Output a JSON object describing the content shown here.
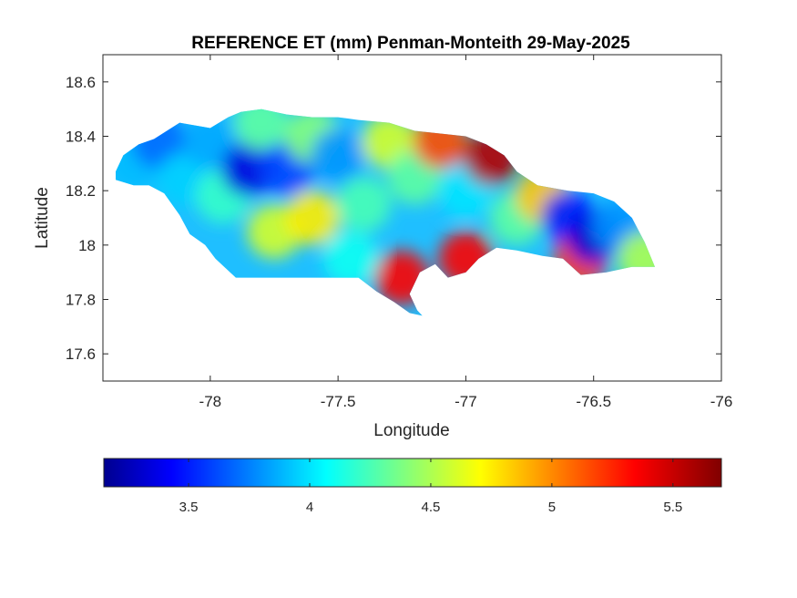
{
  "figure": {
    "title": "REFERENCE ET (mm) Penman-Monteith 29-May-2025"
  },
  "chart_data": {
    "type": "heatmap",
    "title": "REFERENCE ET (mm) Penman-Monteith 29-May-2025",
    "xlabel": "Longitude",
    "ylabel": "Latitude",
    "xlim": [
      -78.42,
      -76.0
    ],
    "ylim": [
      17.5,
      18.7
    ],
    "x_ticks": [
      -78,
      -77.5,
      -77,
      -76.5,
      -76
    ],
    "x_tick_labels": [
      "-78",
      "-77.5",
      "-77",
      "-76.5",
      "-76"
    ],
    "y_ticks": [
      17.6,
      17.8,
      18,
      18.2,
      18.4,
      18.6
    ],
    "y_tick_labels": [
      "17.6",
      "17.8",
      "18",
      "18.2",
      "18.4",
      "18.6"
    ],
    "colormap": "jet",
    "colorbar": {
      "location": "southoutside",
      "range": [
        3.15,
        5.7
      ],
      "ticks": [
        3.5,
        4,
        4.5,
        5,
        5.5
      ],
      "tick_labels": [
        "3.5",
        "4",
        "4.5",
        "5",
        "5.5"
      ]
    },
    "region_outline": [
      [
        -78.37,
        18.27
      ],
      [
        -78.34,
        18.33
      ],
      [
        -78.28,
        18.37
      ],
      [
        -78.22,
        18.39
      ],
      [
        -78.12,
        18.45
      ],
      [
        -78.0,
        18.43
      ],
      [
        -77.93,
        18.47
      ],
      [
        -77.88,
        18.49
      ],
      [
        -77.8,
        18.5
      ],
      [
        -77.7,
        18.48
      ],
      [
        -77.6,
        18.47
      ],
      [
        -77.5,
        18.47
      ],
      [
        -77.42,
        18.46
      ],
      [
        -77.3,
        18.45
      ],
      [
        -77.2,
        18.42
      ],
      [
        -77.1,
        18.41
      ],
      [
        -77.0,
        18.4
      ],
      [
        -76.92,
        18.37
      ],
      [
        -76.85,
        18.33
      ],
      [
        -76.8,
        18.27
      ],
      [
        -76.72,
        18.22
      ],
      [
        -76.6,
        18.2
      ],
      [
        -76.5,
        18.19
      ],
      [
        -76.42,
        18.16
      ],
      [
        -76.35,
        18.1
      ],
      [
        -76.3,
        18.01
      ],
      [
        -76.26,
        17.92
      ],
      [
        -76.35,
        17.92
      ],
      [
        -76.45,
        17.9
      ],
      [
        -76.55,
        17.89
      ],
      [
        -76.62,
        17.95
      ],
      [
        -76.7,
        17.96
      ],
      [
        -76.8,
        17.98
      ],
      [
        -76.88,
        17.99
      ],
      [
        -76.95,
        17.95
      ],
      [
        -77.0,
        17.9
      ],
      [
        -77.07,
        17.88
      ],
      [
        -77.12,
        17.93
      ],
      [
        -77.18,
        17.9
      ],
      [
        -77.22,
        17.82
      ],
      [
        -77.19,
        17.76
      ],
      [
        -77.17,
        17.74
      ],
      [
        -77.22,
        17.75
      ],
      [
        -77.28,
        17.79
      ],
      [
        -77.35,
        17.83
      ],
      [
        -77.42,
        17.88
      ],
      [
        -77.5,
        17.88
      ],
      [
        -77.6,
        17.88
      ],
      [
        -77.7,
        17.88
      ],
      [
        -77.8,
        17.88
      ],
      [
        -77.9,
        17.88
      ],
      [
        -77.98,
        17.95
      ],
      [
        -78.02,
        18.0
      ],
      [
        -78.08,
        18.04
      ],
      [
        -78.12,
        18.11
      ],
      [
        -78.18,
        18.19
      ],
      [
        -78.24,
        18.22
      ],
      [
        -78.3,
        18.22
      ],
      [
        -78.37,
        18.24
      ]
    ],
    "sample_points": [
      {
        "lon": -78.3,
        "lat": 18.3,
        "value": 3.9
      },
      {
        "lon": -78.2,
        "lat": 18.38,
        "value": 3.7
      },
      {
        "lon": -78.1,
        "lat": 18.24,
        "value": 3.95
      },
      {
        "lon": -78.0,
        "lat": 18.38,
        "value": 3.85
      },
      {
        "lon": -77.95,
        "lat": 18.18,
        "value": 4.2
      },
      {
        "lon": -77.85,
        "lat": 18.28,
        "value": 3.35
      },
      {
        "lon": -77.8,
        "lat": 18.45,
        "value": 4.3
      },
      {
        "lon": -77.75,
        "lat": 18.05,
        "value": 4.6
      },
      {
        "lon": -77.7,
        "lat": 18.28,
        "value": 3.6
      },
      {
        "lon": -77.6,
        "lat": 18.4,
        "value": 4.4
      },
      {
        "lon": -77.6,
        "lat": 18.1,
        "value": 4.75
      },
      {
        "lon": -77.5,
        "lat": 18.33,
        "value": 3.8
      },
      {
        "lon": -77.45,
        "lat": 17.95,
        "value": 4.1
      },
      {
        "lon": -77.4,
        "lat": 18.15,
        "value": 4.25
      },
      {
        "lon": -77.3,
        "lat": 18.38,
        "value": 4.6
      },
      {
        "lon": -77.25,
        "lat": 17.88,
        "value": 5.35
      },
      {
        "lon": -77.2,
        "lat": 18.25,
        "value": 4.3
      },
      {
        "lon": -77.1,
        "lat": 18.38,
        "value": 5.15
      },
      {
        "lon": -77.0,
        "lat": 17.95,
        "value": 5.35
      },
      {
        "lon": -77.0,
        "lat": 18.2,
        "value": 4.0
      },
      {
        "lon": -76.9,
        "lat": 18.32,
        "value": 5.55
      },
      {
        "lon": -76.8,
        "lat": 18.1,
        "value": 4.3
      },
      {
        "lon": -76.7,
        "lat": 18.18,
        "value": 4.85
      },
      {
        "lon": -76.6,
        "lat": 18.1,
        "value": 3.5
      },
      {
        "lon": -76.55,
        "lat": 17.95,
        "value": 5.2
      },
      {
        "lon": -76.5,
        "lat": 18.03,
        "value": 3.35
      },
      {
        "lon": -76.4,
        "lat": 18.07,
        "value": 3.8
      },
      {
        "lon": -76.3,
        "lat": 17.95,
        "value": 4.5
      }
    ]
  }
}
